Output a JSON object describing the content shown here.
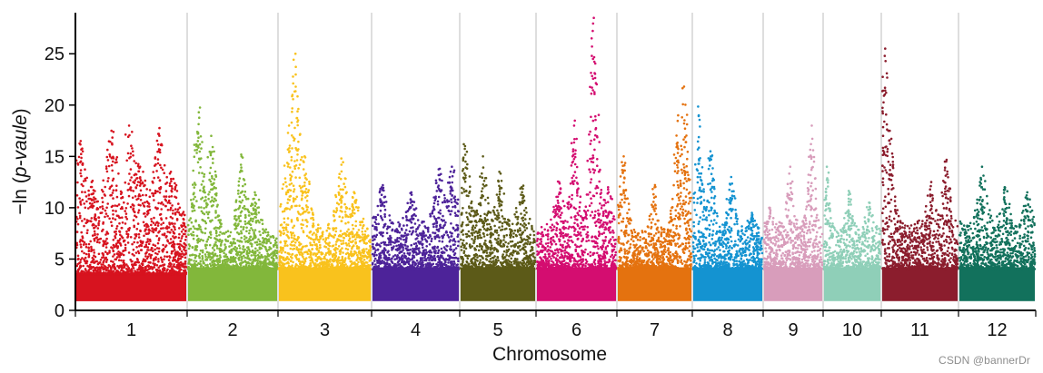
{
  "chart_data": {
    "type": "scatter",
    "subtype": "manhattan",
    "title": "",
    "xlabel": "Chromosome",
    "ylabel_prefix": "−ln (",
    "ylabel_italic": "p-vaule",
    "ylabel_suffix": ")",
    "ylim": [
      0,
      29
    ],
    "yticks": [
      0,
      5,
      10,
      15,
      20,
      25
    ],
    "ytick_labels": [
      "0",
      "5",
      "10",
      "15",
      "20",
      "25"
    ],
    "grid": "vertical chromosome separators",
    "chromosomes": [
      {
        "label": "1",
        "color": "#d7131f",
        "peaks": [
          {
            "x": 0.04,
            "y": 16.5
          },
          {
            "x": 0.14,
            "y": 12.5
          },
          {
            "x": 0.32,
            "y": 17.5
          },
          {
            "x": 0.48,
            "y": 18.0
          },
          {
            "x": 0.58,
            "y": 14.0
          },
          {
            "x": 0.75,
            "y": 17.2
          },
          {
            "x": 0.86,
            "y": 13.5
          }
        ],
        "baseline": 9,
        "min": 2.5
      },
      {
        "label": "2",
        "color": "#82b73b",
        "peaks": [
          {
            "x": 0.12,
            "y": 19.3
          },
          {
            "x": 0.26,
            "y": 17.0
          },
          {
            "x": 0.6,
            "y": 15.0
          },
          {
            "x": 0.75,
            "y": 11.5
          }
        ],
        "baseline": 7.5,
        "min": 3
      },
      {
        "label": "3",
        "color": "#f9c21d",
        "peaks": [
          {
            "x": 0.18,
            "y": 25.0
          },
          {
            "x": 0.11,
            "y": 18.0
          },
          {
            "x": 0.28,
            "y": 15.0
          },
          {
            "x": 0.68,
            "y": 14.8
          },
          {
            "x": 0.82,
            "y": 11.5
          }
        ],
        "baseline": 8,
        "min": 3
      },
      {
        "label": "4",
        "color": "#4d2399",
        "peaks": [
          {
            "x": 0.12,
            "y": 12.2
          },
          {
            "x": 0.45,
            "y": 11.5
          },
          {
            "x": 0.78,
            "y": 13.8
          },
          {
            "x": 0.92,
            "y": 14.0
          }
        ],
        "baseline": 8.5,
        "min": 3
      },
      {
        "label": "5",
        "color": "#5c5a18",
        "peaks": [
          {
            "x": 0.06,
            "y": 16.0
          },
          {
            "x": 0.3,
            "y": 15.0
          },
          {
            "x": 0.52,
            "y": 13.5
          },
          {
            "x": 0.82,
            "y": 12.0
          }
        ],
        "baseline": 8.5,
        "min": 3
      },
      {
        "label": "6",
        "color": "#d40d70",
        "peaks": [
          {
            "x": 0.28,
            "y": 12.5
          },
          {
            "x": 0.47,
            "y": 18.0
          },
          {
            "x": 0.72,
            "y": 28.5
          },
          {
            "x": 0.9,
            "y": 12.0
          }
        ],
        "baseline": 8,
        "min": 3
      },
      {
        "label": "7",
        "color": "#e4720f",
        "peaks": [
          {
            "x": 0.08,
            "y": 15.0
          },
          {
            "x": 0.5,
            "y": 12.0
          },
          {
            "x": 0.82,
            "y": 19.0
          },
          {
            "x": 0.9,
            "y": 21.8
          }
        ],
        "baseline": 7.5,
        "min": 3
      },
      {
        "label": "8",
        "color": "#1493d1",
        "peaks": [
          {
            "x": 0.08,
            "y": 19.0
          },
          {
            "x": 0.25,
            "y": 15.5
          },
          {
            "x": 0.55,
            "y": 13.0
          },
          {
            "x": 0.85,
            "y": 9.5
          }
        ],
        "baseline": 8,
        "min": 3
      },
      {
        "label": "9",
        "color": "#d89dbb",
        "peaks": [
          {
            "x": 0.1,
            "y": 10.0
          },
          {
            "x": 0.45,
            "y": 14.0
          },
          {
            "x": 0.82,
            "y": 18.0
          }
        ],
        "baseline": 8.5,
        "min": 3
      },
      {
        "label": "10",
        "color": "#8fcfb8",
        "peaks": [
          {
            "x": 0.05,
            "y": 14.0
          },
          {
            "x": 0.45,
            "y": 11.5
          },
          {
            "x": 0.8,
            "y": 10.5
          }
        ],
        "baseline": 8,
        "min": 3
      },
      {
        "label": "11",
        "color": "#8b1d2d",
        "peaks": [
          {
            "x": 0.04,
            "y": 25.5
          },
          {
            "x": 0.1,
            "y": 17.5
          },
          {
            "x": 0.65,
            "y": 12.5
          },
          {
            "x": 0.85,
            "y": 14.5
          }
        ],
        "baseline": 8.5,
        "min": 3
      },
      {
        "label": "12",
        "color": "#12715c",
        "peaks": [
          {
            "x": 0.3,
            "y": 14.0
          },
          {
            "x": 0.6,
            "y": 12.0
          },
          {
            "x": 0.9,
            "y": 11.5
          }
        ],
        "baseline": 8.5,
        "min": 3
      }
    ]
  },
  "watermark": "CSDN @bannerDr"
}
